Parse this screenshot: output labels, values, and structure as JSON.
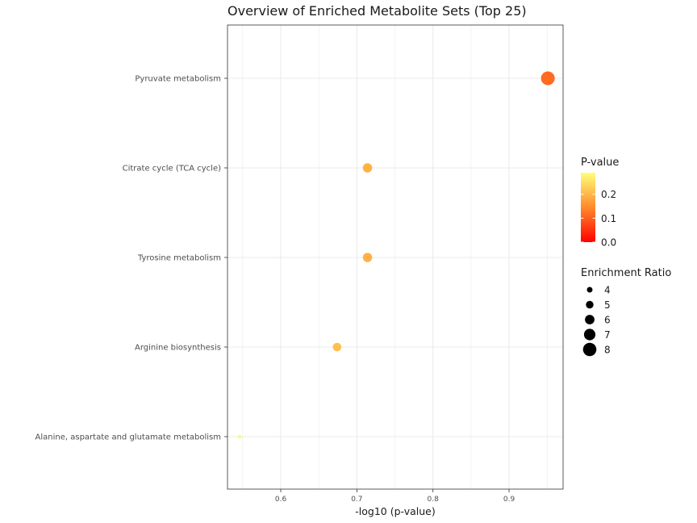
{
  "chart_data": {
    "type": "scatter",
    "title": "Overview of Enriched Metabolite Sets (Top 25)",
    "xlabel": "-log10 (p-value)",
    "ylabel": "",
    "xlim": [
      0.53,
      0.971
    ],
    "x_ticks": [
      "0.6",
      "0.7",
      "0.8",
      "0.9"
    ],
    "x_tick_values": [
      0.6,
      0.7,
      0.8,
      0.9
    ],
    "categories": [
      "Pyruvate metabolism",
      "Citrate cycle (TCA cycle)",
      "Tyrosine metabolism",
      "Arginine biosynthesis",
      "Alanine, aspartate and glutamate metabolism"
    ],
    "points": [
      {
        "category": "Pyruvate metabolism",
        "x": 0.951,
        "p_value": 0.112,
        "enrichment_ratio": 8.2
      },
      {
        "category": "Citrate cycle (TCA cycle)",
        "x": 0.714,
        "p_value": 0.193,
        "enrichment_ratio": 5.9
      },
      {
        "category": "Tyrosine metabolism",
        "x": 0.714,
        "p_value": 0.193,
        "enrichment_ratio": 5.9
      },
      {
        "category": "Arginine biosynthesis",
        "x": 0.674,
        "p_value": 0.212,
        "enrichment_ratio": 5.5
      },
      {
        "category": "Alanine, aspartate and glutamate metabolism",
        "x": 0.546,
        "p_value": 0.284,
        "enrichment_ratio": 3.0
      }
    ],
    "grid": true,
    "legend_position": "right",
    "color_legend": {
      "title": "P-value",
      "labels": [
        "0.2",
        "0.1",
        "0.0"
      ],
      "values": [
        0.2,
        0.1,
        0.0
      ],
      "range": [
        0.0,
        0.29
      ],
      "low_color": "#ff0000",
      "mid_color": "#ff8a2a",
      "high_color": "#ffff7a"
    },
    "size_legend": {
      "title": "Enrichment Ratio",
      "labels": [
        "4",
        "5",
        "6",
        "7",
        "8"
      ],
      "values": [
        4,
        5,
        6,
        7,
        8
      ]
    },
    "colors": {
      "grid": "#ebebeb",
      "panel_border": "#333333",
      "point_outline": "none"
    }
  }
}
